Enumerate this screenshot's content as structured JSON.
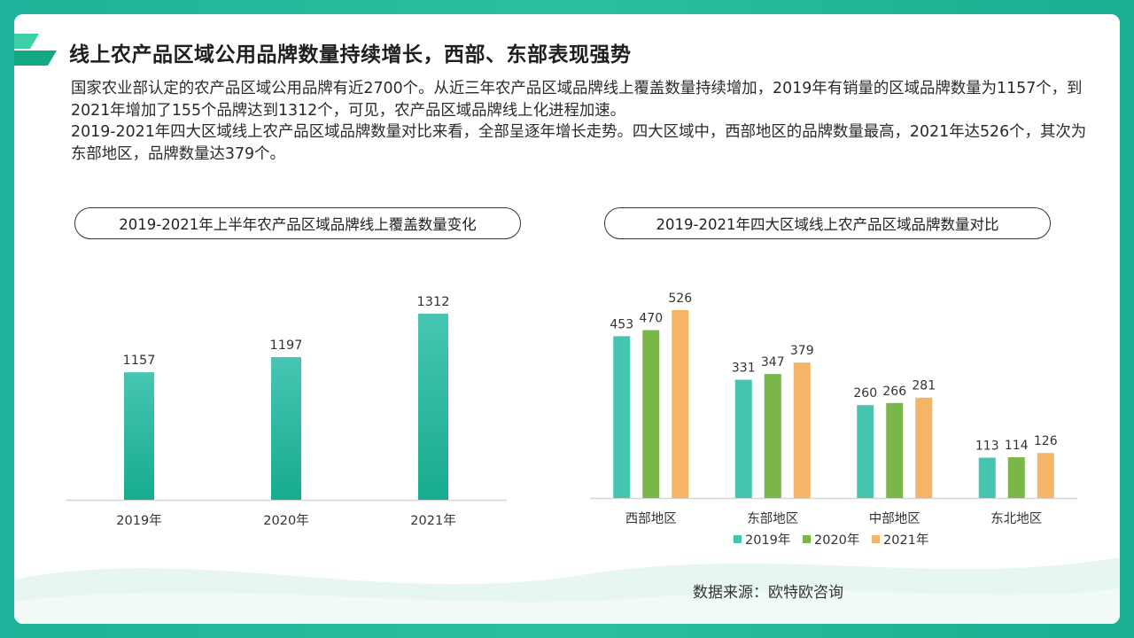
{
  "title": "线上农产品区域公用品牌数量持续增长，西部、东部表现强势",
  "description": [
    "国家农业部认定的农产品区域公用品牌有近2700个。从近三年农产品区域品牌线上覆盖数量持续增加，2019年有销量的区域品牌数量为1157个，到2021年增加了155个品牌达到1312个，可见，农产品区域品牌线上化进程加速。",
    "2019-2021年四大区域线上农产品区域品牌数量对比来看，全部呈逐年增长走势。四大区域中，西部地区的品牌数量最高，2021年达526个，其次为东部地区，品牌数量达379个。"
  ],
  "source": "数据来源：欧特欧咨询",
  "colors": {
    "teal": "#45c4b0",
    "green": "#7ab648",
    "orange": "#f4b566",
    "accent": "#1eb39a"
  },
  "chart_data": [
    {
      "type": "bar",
      "title": "2019-2021年上半年农产品区域品牌线上覆盖数量变化",
      "categories": [
        "2019年",
        "2020年",
        "2021年"
      ],
      "values": [
        1157,
        1197,
        1312
      ],
      "ylim": [
        820,
        1340
      ],
      "grid": false
    },
    {
      "type": "bar",
      "title": "2019-2021年四大区域线上农产品区域品牌数量对比",
      "categories": [
        "西部地区",
        "东部地区",
        "中部地区",
        "东北地区"
      ],
      "series": [
        {
          "name": "2019年",
          "values": [
            453,
            331,
            260,
            113
          ],
          "color": "#45c4b0"
        },
        {
          "name": "2020年",
          "values": [
            470,
            347,
            266,
            114
          ],
          "color": "#7ab648"
        },
        {
          "name": "2021年",
          "values": [
            526,
            379,
            281,
            126
          ],
          "color": "#f4b566"
        }
      ],
      "ylim": [
        0,
        550
      ],
      "legend": "bottom",
      "grid": false
    }
  ]
}
